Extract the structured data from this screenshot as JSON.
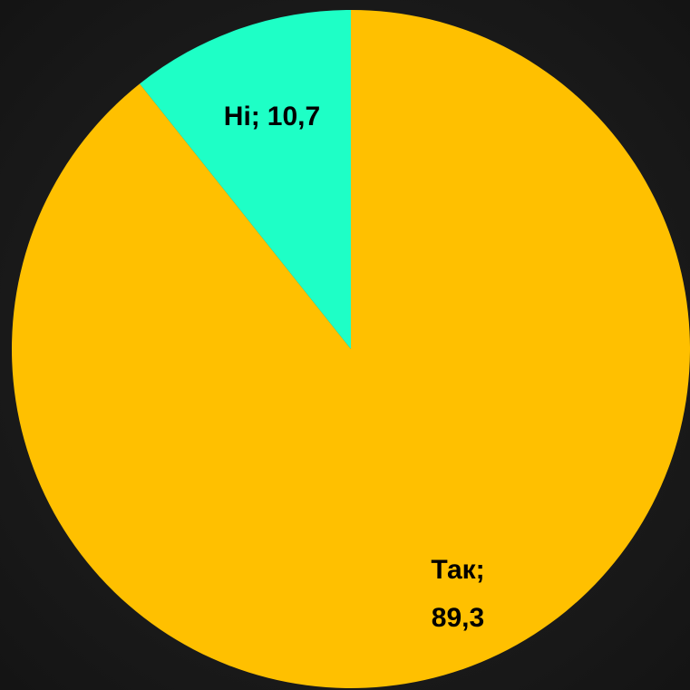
{
  "chart_data": {
    "type": "pie",
    "categories": [
      "Так;",
      "Ні;"
    ],
    "values": [
      89.3,
      10.7
    ],
    "value_labels": [
      "89,3",
      "10,7"
    ],
    "colors": [
      "#ffc000",
      "#1effc6"
    ]
  }
}
